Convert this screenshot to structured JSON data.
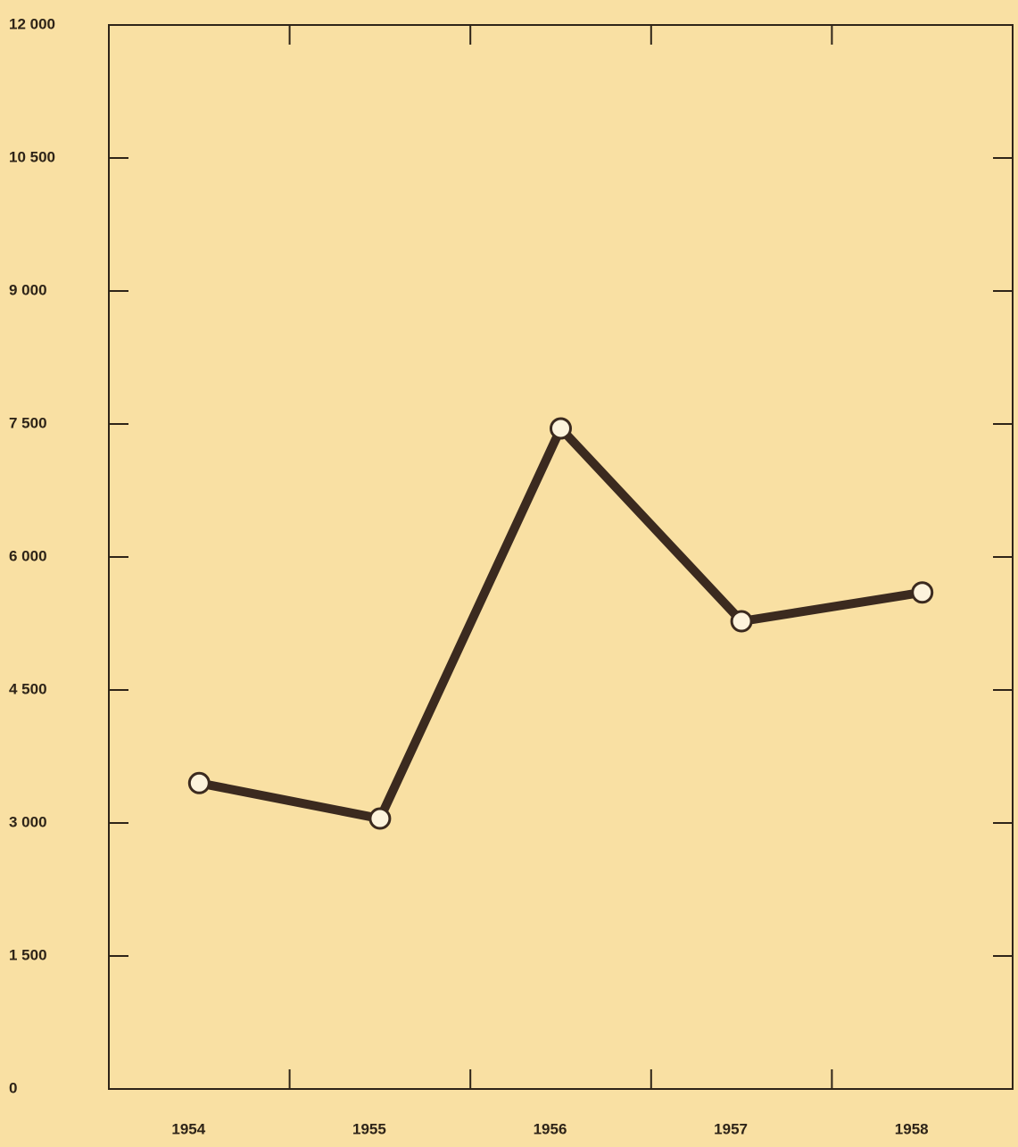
{
  "chart_data": {
    "type": "line",
    "categories": [
      "1954",
      "1955",
      "1956",
      "1957",
      "1958"
    ],
    "series": [
      {
        "color": "#3b2a1f",
        "values": [
          3450,
          3050,
          7450,
          5275,
          5600
        ]
      }
    ],
    "ylim": [
      0,
      12000
    ],
    "yticks": [
      0,
      {
        "value": 1500,
        "label": "1 500"
      },
      {
        "value": 3000,
        "label": "3 000"
      },
      {
        "value": 4500,
        "label": "4 500"
      },
      {
        "value": 6000,
        "label": "6 000"
      },
      {
        "value": 7500,
        "label": "7 500"
      },
      {
        "value": 9000,
        "label": "9 000"
      },
      {
        "value": 10500,
        "label": "10 500"
      },
      {
        "value": 12000,
        "label": "12 000"
      }
    ],
    "grid": false
  }
}
